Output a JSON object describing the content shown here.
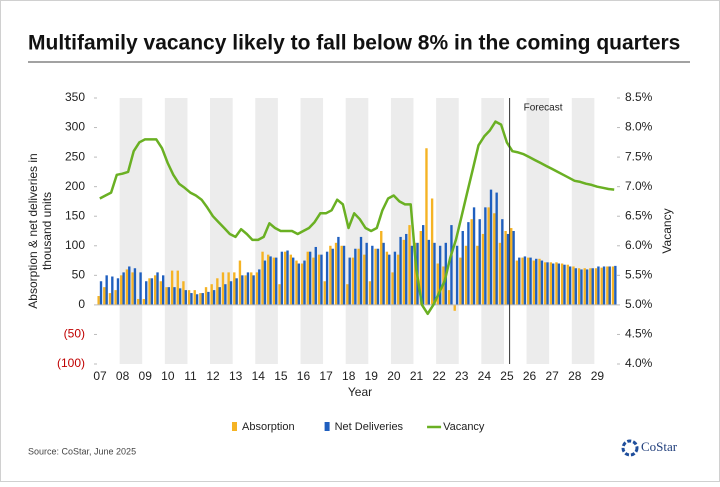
{
  "chart_data": {
    "type": "bar",
    "title": "Multifamily vacancy likely to fall below 8% in the coming quarters",
    "xlabel": "Year",
    "ylabel": "Absorption & net deliveries in thousand units",
    "y2label": "Vacancy",
    "annotation": "Forecast",
    "forecast_index": 73,
    "source": "Source: CoStar, June 2025",
    "logo": "CoStar",
    "negative_tick_color": "#c00000",
    "categories": [
      "07",
      null,
      null,
      null,
      "08",
      null,
      null,
      null,
      "09",
      null,
      null,
      null,
      "10",
      null,
      null,
      null,
      "11",
      null,
      null,
      null,
      "12",
      null,
      null,
      null,
      "13",
      null,
      null,
      null,
      "14",
      null,
      null,
      null,
      "15",
      null,
      null,
      null,
      "16",
      null,
      null,
      null,
      "17",
      null,
      null,
      null,
      "18",
      null,
      null,
      null,
      "19",
      null,
      null,
      null,
      "20",
      null,
      null,
      null,
      "21",
      null,
      null,
      null,
      "22",
      null,
      null,
      null,
      "23",
      null,
      null,
      null,
      "24",
      null,
      null,
      null,
      "25",
      null,
      null,
      null,
      "26",
      null,
      null,
      null,
      "27",
      null,
      null,
      null,
      "28",
      null,
      null,
      null,
      "29",
      null,
      null,
      null
    ],
    "series": [
      {
        "name": "Absorption",
        "type": "bar",
        "color": "#f5b324",
        "values": [
          15,
          30,
          20,
          25,
          50,
          60,
          55,
          10,
          10,
          45,
          50,
          40,
          30,
          58,
          58,
          40,
          25,
          25,
          20,
          30,
          35,
          45,
          55,
          55,
          55,
          75,
          50,
          55,
          55,
          90,
          85,
          80,
          35,
          90,
          85,
          75,
          70,
          90,
          80,
          85,
          40,
          100,
          105,
          100,
          35,
          80,
          95,
          85,
          40,
          95,
          125,
          90,
          55,
          85,
          110,
          135,
          105,
          125,
          265,
          180,
          70,
          65,
          25,
          -10,
          80,
          100,
          145,
          100,
          120,
          165,
          155,
          105,
          125,
          130,
          75,
          80,
          80,
          75,
          78,
          72,
          72,
          72,
          70,
          68,
          65,
          62,
          62,
          62,
          62,
          63,
          65,
          65
        ]
      },
      {
        "name": "Net Deliveries",
        "type": "bar",
        "color": "#1f5fbf",
        "values": [
          40,
          50,
          48,
          45,
          55,
          65,
          62,
          55,
          40,
          45,
          55,
          50,
          30,
          30,
          28,
          25,
          20,
          18,
          20,
          22,
          25,
          30,
          35,
          40,
          45,
          50,
          55,
          50,
          60,
          75,
          82,
          80,
          90,
          92,
          80,
          70,
          75,
          90,
          98,
          85,
          90,
          95,
          115,
          100,
          80,
          95,
          115,
          105,
          100,
          95,
          105,
          85,
          90,
          115,
          120,
          100,
          105,
          135,
          110,
          105,
          100,
          105,
          135,
          100,
          125,
          140,
          165,
          145,
          165,
          195,
          190,
          145,
          120,
          125,
          80,
          82,
          80,
          78,
          75,
          72,
          70,
          70,
          68,
          65,
          62,
          60,
          60,
          62,
          65,
          65,
          65,
          66
        ]
      },
      {
        "name": "Vacancy",
        "type": "line",
        "axis": "y2",
        "color": "#6ab023",
        "values": [
          6.8,
          6.85,
          6.9,
          7.2,
          7.22,
          7.25,
          7.6,
          7.75,
          7.8,
          7.8,
          7.8,
          7.65,
          7.4,
          7.2,
          7.05,
          6.98,
          6.9,
          6.85,
          6.78,
          6.65,
          6.5,
          6.4,
          6.3,
          6.2,
          6.15,
          6.28,
          6.2,
          6.1,
          6.1,
          6.15,
          6.38,
          6.3,
          6.25,
          6.25,
          6.25,
          6.2,
          6.25,
          6.3,
          6.4,
          6.55,
          6.55,
          6.6,
          6.78,
          6.7,
          6.3,
          6.55,
          6.45,
          6.3,
          6.25,
          6.3,
          6.6,
          6.8,
          6.85,
          6.75,
          6.7,
          6.7,
          5.6,
          5.0,
          4.85,
          5.0,
          5.2,
          5.4,
          5.8,
          6.1,
          6.5,
          6.9,
          7.3,
          7.7,
          7.85,
          7.95,
          8.1,
          8.05,
          7.75,
          7.6,
          7.58,
          7.55,
          7.5,
          7.45,
          7.4,
          7.35,
          7.3,
          7.25,
          7.2,
          7.15,
          7.1,
          7.08,
          7.05,
          7.03,
          7.0,
          6.98,
          6.96,
          6.95
        ]
      }
    ],
    "ylim": [
      -100,
      350
    ],
    "yticks": [
      {
        "value": -100,
        "label": "(100)"
      },
      {
        "value": -50,
        "label": "(50)"
      },
      0,
      50,
      100,
      150,
      200,
      250,
      300,
      350
    ],
    "y2lim": [
      4.0,
      8.5
    ],
    "y2ticks": [
      {
        "value": 4.0,
        "label": "4.0%"
      },
      {
        "value": 4.5,
        "label": "4.5%"
      },
      {
        "value": 5.0,
        "label": "5.0%"
      },
      {
        "value": 5.5,
        "label": "5.5%"
      },
      {
        "value": 6.0,
        "label": "6.0%"
      },
      {
        "value": 6.5,
        "label": "6.5%"
      },
      {
        "value": 7.0,
        "label": "7.0%"
      },
      {
        "value": 7.5,
        "label": "7.5%"
      },
      {
        "value": 8.0,
        "label": "8.0%"
      },
      {
        "value": 8.5,
        "label": "8.5%"
      }
    ],
    "legend": "bottom",
    "band_shading": true
  }
}
